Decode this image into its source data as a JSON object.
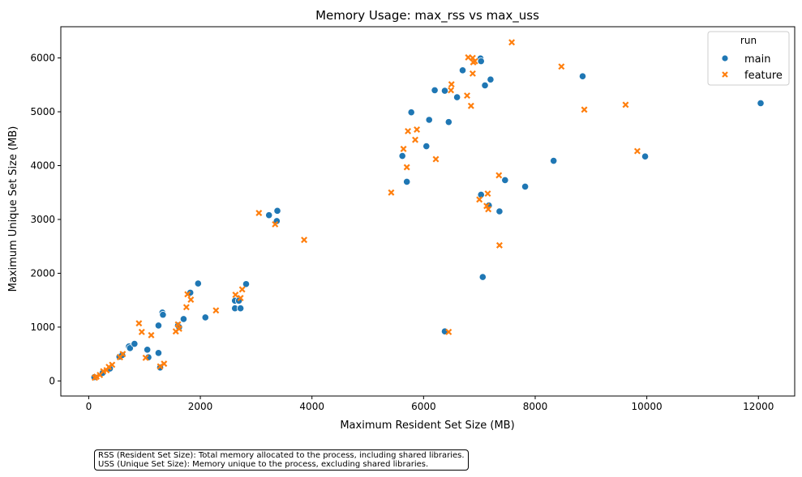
{
  "chart_data": {
    "type": "scatter",
    "title": "Memory Usage: max_rss vs max_uss",
    "xlabel": "Maximum Resident Set Size (MB)",
    "ylabel": "Maximum Unique Set Size (MB)",
    "xlim": [
      -500,
      12650
    ],
    "ylim": [
      -280,
      6580
    ],
    "xticks": [
      0,
      2000,
      4000,
      6000,
      8000,
      10000,
      12000
    ],
    "yticks": [
      0,
      1000,
      2000,
      3000,
      4000,
      5000,
      6000
    ],
    "grid": false,
    "legend": {
      "title": "run",
      "position": "top-right"
    },
    "series": [
      {
        "name": "main",
        "marker": "circle",
        "color": "#1f77b4",
        "points": [
          [
            100,
            70
          ],
          [
            250,
            150
          ],
          [
            380,
            230
          ],
          [
            550,
            450
          ],
          [
            600,
            480
          ],
          [
            720,
            640
          ],
          [
            740,
            610
          ],
          [
            820,
            690
          ],
          [
            1050,
            580
          ],
          [
            1070,
            440
          ],
          [
            1250,
            520
          ],
          [
            1250,
            1030
          ],
          [
            1280,
            250
          ],
          [
            1320,
            1270
          ],
          [
            1330,
            1230
          ],
          [
            1600,
            1030
          ],
          [
            1620,
            1000
          ],
          [
            1700,
            1150
          ],
          [
            1820,
            1640
          ],
          [
            1960,
            1810
          ],
          [
            2090,
            1180
          ],
          [
            2620,
            1350
          ],
          [
            2620,
            1490
          ],
          [
            2690,
            1490
          ],
          [
            2720,
            1350
          ],
          [
            2820,
            1800
          ],
          [
            3230,
            3080
          ],
          [
            3370,
            2970
          ],
          [
            3380,
            3160
          ],
          [
            5620,
            4180
          ],
          [
            5700,
            3700
          ],
          [
            5780,
            4990
          ],
          [
            6050,
            4360
          ],
          [
            6100,
            4850
          ],
          [
            6200,
            5400
          ],
          [
            6380,
            5390
          ],
          [
            6380,
            920
          ],
          [
            6450,
            4810
          ],
          [
            6600,
            5270
          ],
          [
            6700,
            5770
          ],
          [
            7020,
            5990
          ],
          [
            7030,
            5940
          ],
          [
            7030,
            3460
          ],
          [
            7060,
            1930
          ],
          [
            7100,
            5490
          ],
          [
            7200,
            5600
          ],
          [
            7170,
            3260
          ],
          [
            7360,
            3150
          ],
          [
            7460,
            3730
          ],
          [
            7820,
            3610
          ],
          [
            8330,
            4090
          ],
          [
            8850,
            5660
          ],
          [
            9970,
            4170
          ],
          [
            12040,
            5160
          ]
        ]
      },
      {
        "name": "feature",
        "marker": "x",
        "color": "#ff7f0e",
        "points": [
          [
            110,
            60
          ],
          [
            140,
            80
          ],
          [
            200,
            110
          ],
          [
            260,
            180
          ],
          [
            320,
            200
          ],
          [
            360,
            260
          ],
          [
            420,
            300
          ],
          [
            560,
            440
          ],
          [
            610,
            500
          ],
          [
            900,
            1070
          ],
          [
            950,
            910
          ],
          [
            1020,
            430
          ],
          [
            1120,
            850
          ],
          [
            1280,
            270
          ],
          [
            1350,
            320
          ],
          [
            1560,
            920
          ],
          [
            1600,
            1050
          ],
          [
            1620,
            970
          ],
          [
            1750,
            1370
          ],
          [
            1770,
            1610
          ],
          [
            1830,
            1510
          ],
          [
            2280,
            1310
          ],
          [
            2630,
            1600
          ],
          [
            2720,
            1540
          ],
          [
            2750,
            1700
          ],
          [
            3050,
            3120
          ],
          [
            3340,
            2910
          ],
          [
            3860,
            2620
          ],
          [
            5420,
            3500
          ],
          [
            5640,
            4310
          ],
          [
            5700,
            3970
          ],
          [
            5720,
            4640
          ],
          [
            5850,
            4480
          ],
          [
            5880,
            4670
          ],
          [
            6220,
            4120
          ],
          [
            6450,
            910
          ],
          [
            6490,
            5400
          ],
          [
            6500,
            5510
          ],
          [
            6780,
            5300
          ],
          [
            6800,
            6010
          ],
          [
            6850,
            5110
          ],
          [
            6880,
            6000
          ],
          [
            6880,
            5710
          ],
          [
            6890,
            5920
          ],
          [
            6920,
            5940
          ],
          [
            7000,
            3370
          ],
          [
            7130,
            3250
          ],
          [
            7160,
            3190
          ],
          [
            7150,
            3480
          ],
          [
            7350,
            3820
          ],
          [
            7360,
            2520
          ],
          [
            7580,
            6290
          ],
          [
            8470,
            5840
          ],
          [
            8880,
            5040
          ],
          [
            9620,
            5130
          ],
          [
            9830,
            4270
          ]
        ]
      }
    ]
  },
  "note": {
    "line1": "RSS (Resident Set Size): Total memory allocated to the process, including shared libraries.",
    "line2": "USS (Unique Set Size): Memory unique to the process, excluding shared libraries."
  }
}
